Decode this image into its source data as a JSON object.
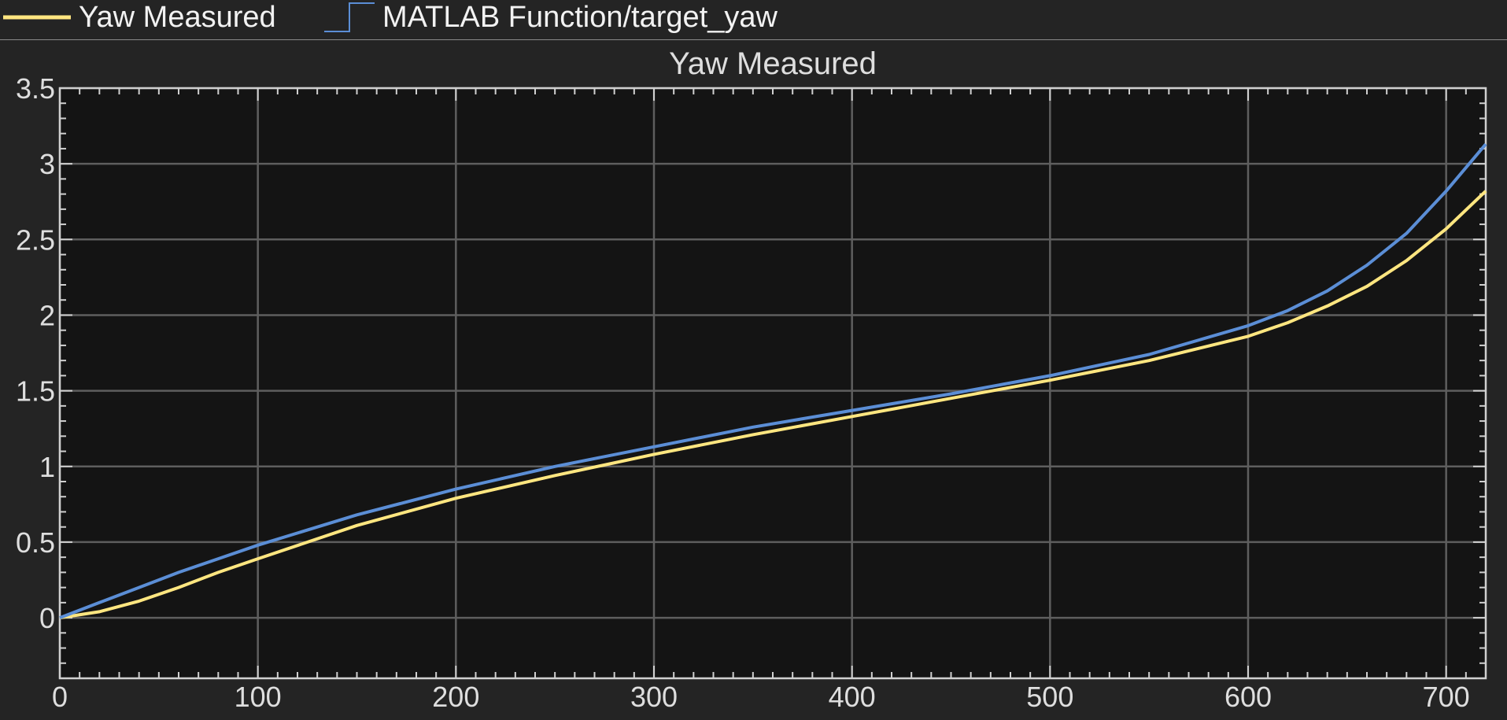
{
  "legend": {
    "items": [
      {
        "label": "Yaw Measured",
        "color": "#ffe680",
        "style": "line"
      },
      {
        "label": "MATLAB Function/target_yaw",
        "color": "#5b8ed6",
        "style": "step"
      }
    ]
  },
  "colors": {
    "background": "#242424",
    "plot_background": "#141414",
    "grid": "#5e5e5e",
    "axes": "#d0d0d0",
    "text": "#dedede"
  },
  "chart_data": {
    "type": "line",
    "title": "Yaw Measured",
    "xlabel": "",
    "ylabel": "",
    "xlim": [
      0,
      720
    ],
    "ylim": [
      -0.4,
      3.5
    ],
    "xticks": [
      0,
      100,
      200,
      300,
      400,
      500,
      600,
      700
    ],
    "xtick_labels": [
      "0",
      "100",
      "200",
      "300",
      "400",
      "500",
      "600",
      "700"
    ],
    "yticks": [
      0,
      0.5,
      1,
      1.5,
      2,
      2.5,
      3,
      3.5
    ],
    "ytick_labels": [
      "0",
      "0.5",
      "1",
      "1.5",
      "2",
      "2.5",
      "3",
      "3.5"
    ],
    "grid": true,
    "legend_position": "top",
    "series": [
      {
        "name": "Yaw Measured",
        "color": "#ffe680",
        "x": [
          0,
          20,
          40,
          60,
          80,
          100,
          150,
          200,
          250,
          300,
          350,
          400,
          450,
          500,
          550,
          600,
          620,
          640,
          660,
          680,
          700,
          720
        ],
        "y": [
          0,
          0.04,
          0.11,
          0.2,
          0.3,
          0.39,
          0.61,
          0.79,
          0.94,
          1.08,
          1.21,
          1.33,
          1.45,
          1.57,
          1.7,
          1.86,
          1.95,
          2.06,
          2.19,
          2.36,
          2.57,
          2.82
        ]
      },
      {
        "name": "MATLAB Function/target_yaw",
        "color": "#5b8ed6",
        "x": [
          0,
          20,
          40,
          60,
          80,
          100,
          150,
          200,
          250,
          300,
          350,
          400,
          450,
          500,
          550,
          600,
          620,
          640,
          660,
          680,
          700,
          720
        ],
        "y": [
          0,
          0.1,
          0.2,
          0.3,
          0.39,
          0.48,
          0.68,
          0.85,
          1.0,
          1.13,
          1.26,
          1.37,
          1.48,
          1.6,
          1.74,
          1.93,
          2.03,
          2.16,
          2.33,
          2.54,
          2.82,
          3.13
        ]
      }
    ]
  }
}
